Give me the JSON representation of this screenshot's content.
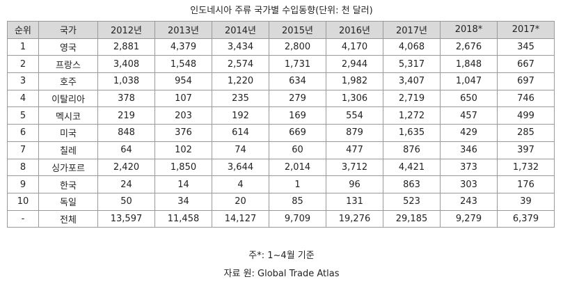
{
  "title": "인도네시아 주류 국가별 수입동향(단위: 천 달러)",
  "table": {
    "header": [
      "순위",
      "국가",
      "2012년",
      "2013년",
      "2014년",
      "2015년",
      "2016년",
      "2017년",
      "2018*",
      "2017*"
    ],
    "rows": [
      [
        "1",
        "영국",
        "2,881",
        "4,379",
        "3,434",
        "2,800",
        "4,170",
        "4,068",
        "2,676",
        "345"
      ],
      [
        "2",
        "프랑스",
        "3,408",
        "1,548",
        "2,574",
        "1,731",
        "2,944",
        "5,317",
        "1,848",
        "667"
      ],
      [
        "3",
        "호주",
        "1,038",
        "954",
        "1,220",
        "634",
        "1,982",
        "3,407",
        "1,047",
        "697"
      ],
      [
        "4",
        "이탈리아",
        "378",
        "107",
        "235",
        "279",
        "1,306",
        "2,719",
        "650",
        "746"
      ],
      [
        "5",
        "멕시코",
        "219",
        "203",
        "192",
        "169",
        "554",
        "1,272",
        "457",
        "499"
      ],
      [
        "6",
        "미국",
        "848",
        "376",
        "614",
        "669",
        "879",
        "1,635",
        "429",
        "285"
      ],
      [
        "7",
        "칠레",
        "64",
        "102",
        "74",
        "60",
        "477",
        "876",
        "346",
        "397"
      ],
      [
        "8",
        "싱가포르",
        "2,420",
        "1,850",
        "3,644",
        "2,014",
        "3,712",
        "4,421",
        "373",
        "1,732"
      ],
      [
        "9",
        "한국",
        "24",
        "14",
        "4",
        "1",
        "96",
        "863",
        "303",
        "176"
      ],
      [
        "10",
        "독일",
        "50",
        "34",
        "20",
        "85",
        "131",
        "523",
        "243",
        "39"
      ],
      [
        "-",
        "전체",
        "13,597",
        "11,458",
        "14,127",
        "9,709",
        "19,276",
        "29,185",
        "9,279",
        "6,379"
      ]
    ]
  },
  "footnote": "주*: 1~4월 기준",
  "source": "자료 원: Global Trade Atlas"
}
